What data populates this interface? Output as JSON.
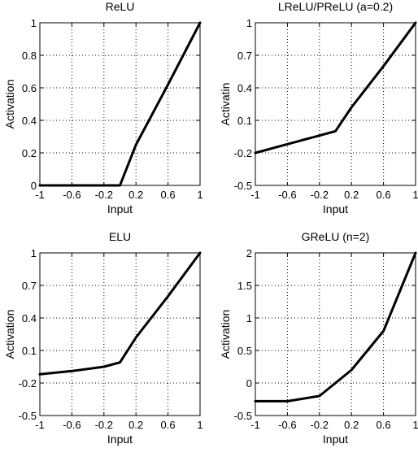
{
  "chart_data": [
    {
      "type": "line",
      "title": "ReLU",
      "xlabel": "Input",
      "ylabel": "Activation",
      "xlim": [
        -1,
        1
      ],
      "ylim": [
        0,
        1
      ],
      "xticks": [
        -1,
        -0.6,
        -0.2,
        0.2,
        0.6,
        1
      ],
      "xtick_labels": [
        "-1",
        "-0.6",
        "-0.2",
        "0.2",
        "0.6",
        "1"
      ],
      "yticks": [
        0,
        0.2,
        0.4,
        0.6,
        0.8,
        1
      ],
      "ytick_labels": [
        "0",
        "0.2",
        "0.4",
        "0.6",
        "0.8",
        "1"
      ],
      "grid": true,
      "series": [
        {
          "x": [
            -1,
            -0.6,
            -0.2,
            0.0,
            0.2,
            0.6,
            1.0
          ],
          "y": [
            0,
            0,
            0,
            0,
            0.25,
            0.62,
            1.0
          ]
        }
      ]
    },
    {
      "type": "line",
      "title": "LReLU/PReLU (a=0.2)",
      "xlabel": "Input",
      "ylabel": "Activatin",
      "xlim": [
        -1,
        1
      ],
      "ylim": [
        -0.5,
        1
      ],
      "xticks": [
        -1,
        -0.6,
        -0.2,
        0.2,
        0.6,
        1
      ],
      "xtick_labels": [
        "-1",
        "-0.6",
        "-0.2",
        "0.2",
        "0.6",
        "1"
      ],
      "yticks": [
        -0.5,
        -0.2,
        0.1,
        0.4,
        0.7,
        1
      ],
      "ytick_labels": [
        "-0.5",
        "-0.2",
        "0.1",
        "0.4",
        "0.7",
        "1"
      ],
      "grid": true,
      "series": [
        {
          "x": [
            -1,
            -0.6,
            -0.2,
            0.0,
            0.2,
            0.6,
            1.0
          ],
          "y": [
            -0.2,
            -0.12,
            -0.04,
            0.0,
            0.22,
            0.6,
            1.0
          ]
        }
      ]
    },
    {
      "type": "line",
      "title": "ELU",
      "xlabel": "Input",
      "ylabel": "Activation",
      "xlim": [
        -1,
        1
      ],
      "ylim": [
        -0.5,
        1
      ],
      "xticks": [
        -1,
        -0.6,
        -0.2,
        0.2,
        0.6,
        1
      ],
      "xtick_labels": [
        "-1",
        "-0.6",
        "-0.2",
        "0.2",
        "0.6",
        "1"
      ],
      "yticks": [
        -0.5,
        -0.2,
        0.1,
        0.4,
        0.7,
        1
      ],
      "ytick_labels": [
        "-0.5",
        "-0.2",
        "0.1",
        "0.4",
        "0.7",
        "1"
      ],
      "grid": true,
      "series": [
        {
          "x": [
            -1,
            -0.6,
            -0.2,
            0.0,
            0.2,
            0.6,
            1.0
          ],
          "y": [
            -0.12,
            -0.09,
            -0.05,
            -0.01,
            0.22,
            0.6,
            1.0
          ]
        }
      ]
    },
    {
      "type": "line",
      "title": "GReLU (n=2)",
      "xlabel": "Input",
      "ylabel": "Activation",
      "xlim": [
        -1,
        1
      ],
      "ylim": [
        -0.5,
        2
      ],
      "xticks": [
        -1,
        -0.6,
        -0.2,
        0.2,
        0.6,
        1
      ],
      "xtick_labels": [
        "-1",
        "-0.6",
        "-0.2",
        "0.2",
        "0.6",
        "1"
      ],
      "yticks": [
        -0.5,
        0,
        0.5,
        1,
        1.5,
        2
      ],
      "ytick_labels": [
        "-0.5",
        "0",
        "0.5",
        "1",
        "1.5",
        "2"
      ],
      "grid": true,
      "series": [
        {
          "x": [
            -1,
            -0.6,
            -0.2,
            0.2,
            0.6,
            1.0
          ],
          "y": [
            -0.28,
            -0.28,
            -0.2,
            0.2,
            0.8,
            2.0
          ]
        }
      ]
    }
  ]
}
